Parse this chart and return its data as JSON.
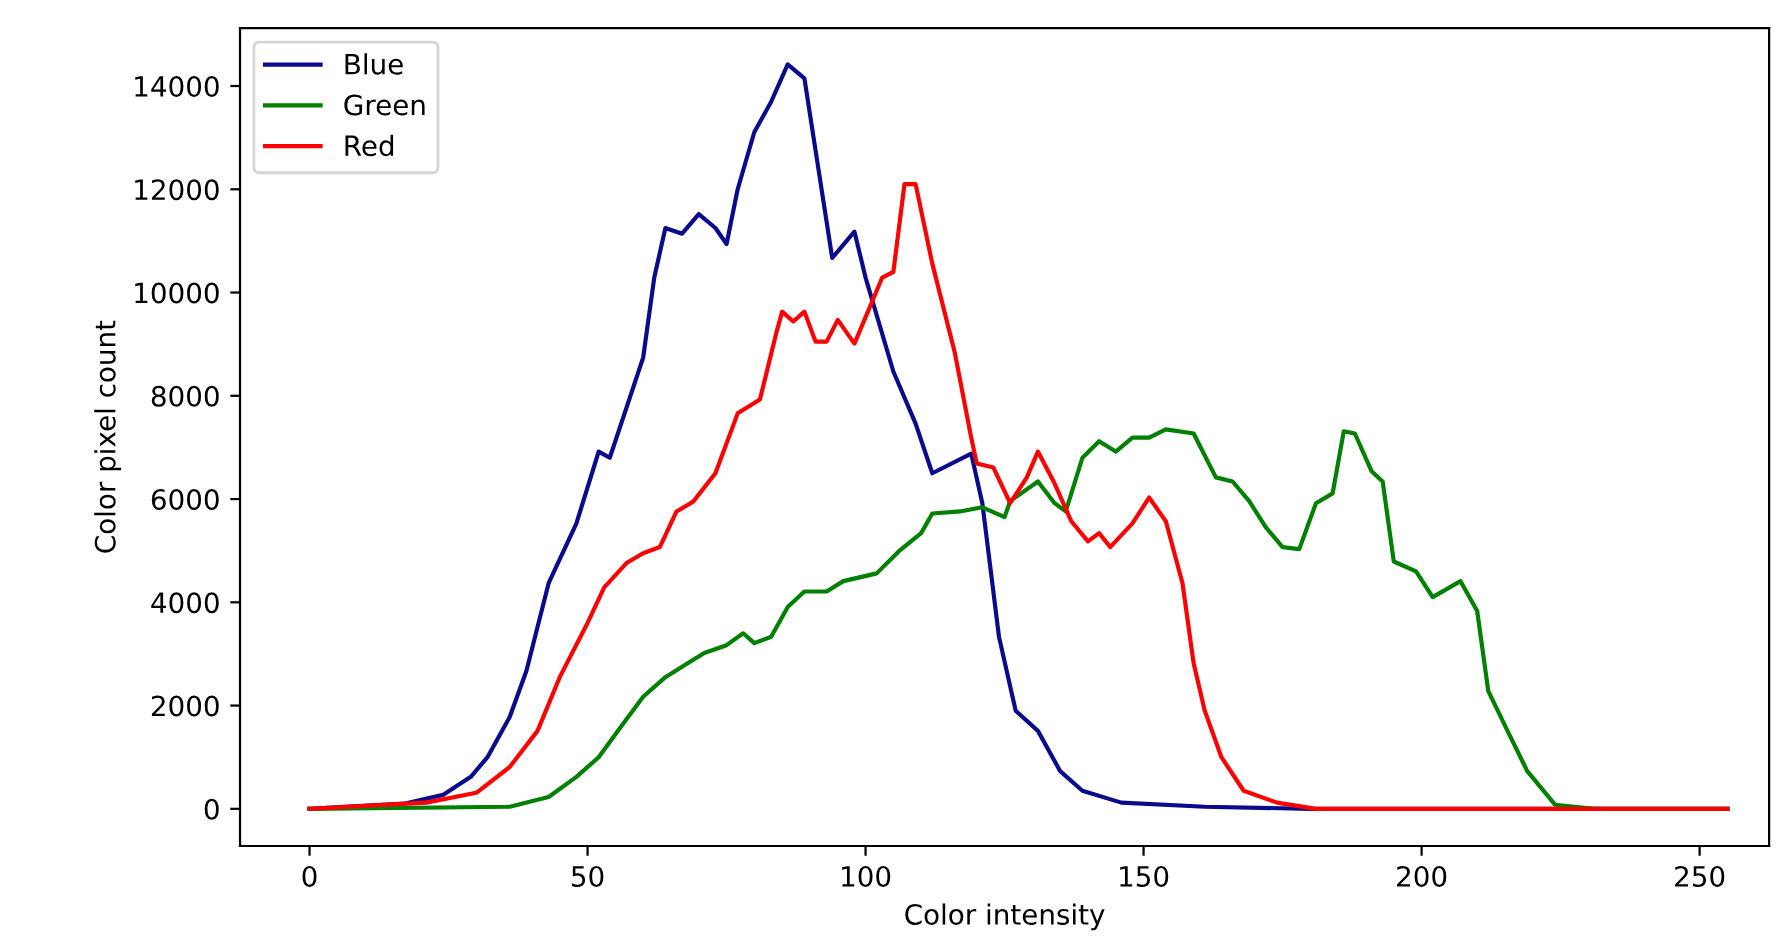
{
  "chart_data": {
    "type": "line",
    "xlabel": "Color intensity",
    "ylabel": "Color pixel count",
    "xlim": [
      -12.5,
      262.5
    ],
    "ylim": [
      -720,
      15120
    ],
    "xticks": [
      0,
      50,
      100,
      150,
      200,
      250
    ],
    "yticks": [
      0,
      2000,
      4000,
      6000,
      8000,
      10000,
      12000,
      14000
    ],
    "legend": "top left",
    "grid": false,
    "series": [
      {
        "name": "Blue",
        "color": "#0a0a8c",
        "x": [
          0,
          17,
          24,
          29,
          32,
          36,
          39,
          43,
          48,
          52,
          54,
          60,
          62,
          64,
          67,
          70,
          73,
          75,
          77,
          80,
          83,
          86,
          89,
          94,
          98,
          100,
          105,
          109,
          112,
          119,
          121,
          124,
          127,
          131,
          135,
          139,
          146,
          161,
          180,
          255
        ],
        "values": [
          0,
          100,
          270,
          620,
          1000,
          1780,
          2670,
          4370,
          5530,
          6920,
          6800,
          8740,
          10290,
          11250,
          11140,
          11520,
          11250,
          10940,
          12000,
          13110,
          13690,
          14420,
          14150,
          10670,
          11180,
          10290,
          8470,
          7460,
          6500,
          6880,
          5920,
          3330,
          1900,
          1510,
          730,
          350,
          120,
          40,
          0,
          0
        ]
      },
      {
        "name": "Green",
        "color": "#008000",
        "x": [
          0,
          36,
          43,
          48,
          52,
          56,
          60,
          64,
          68,
          71,
          75,
          78,
          80,
          83,
          86,
          89,
          93,
          96,
          102,
          106,
          110,
          112,
          117,
          121,
          125,
          126,
          131,
          134,
          136,
          139,
          142,
          145,
          148,
          151,
          154,
          159,
          163,
          166,
          169,
          172,
          175,
          178,
          181,
          184,
          186,
          188,
          191,
          193,
          195,
          199,
          202,
          207,
          210,
          212,
          216,
          219,
          224,
          231,
          255
        ],
        "values": [
          0,
          40,
          230,
          620,
          1000,
          1590,
          2170,
          2550,
          2820,
          3020,
          3170,
          3400,
          3210,
          3330,
          3910,
          4210,
          4210,
          4410,
          4560,
          4990,
          5340,
          5720,
          5760,
          5840,
          5650,
          5960,
          6340,
          5920,
          5760,
          6800,
          7120,
          6920,
          7190,
          7190,
          7350,
          7270,
          6420,
          6340,
          5960,
          5450,
          5070,
          5030,
          5920,
          6110,
          7310,
          7270,
          6540,
          6340,
          4790,
          4600,
          4100,
          4410,
          3830,
          2280,
          1390,
          730,
          80,
          0,
          0
        ]
      },
      {
        "name": "Red",
        "color": "#ff0000",
        "x": [
          0,
          21,
          30,
          36,
          41,
          45,
          50,
          53,
          57,
          60,
          63,
          66,
          69,
          73,
          77,
          81,
          84,
          85,
          87,
          89,
          91,
          93,
          95,
          98,
          103,
          105,
          107,
          109,
          112,
          116,
          119,
          120,
          123,
          126,
          129,
          131,
          134,
          137,
          140,
          142,
          144,
          148,
          151,
          154,
          157,
          159,
          161,
          164,
          168,
          174,
          181,
          255
        ],
        "values": [
          0,
          120,
          310,
          810,
          1510,
          2550,
          3600,
          4290,
          4760,
          4950,
          5070,
          5760,
          5950,
          6500,
          7660,
          7930,
          9240,
          9630,
          9440,
          9630,
          9050,
          9050,
          9470,
          9010,
          10290,
          10400,
          12100,
          12100,
          10560,
          8860,
          7190,
          6690,
          6610,
          5920,
          6420,
          6920,
          6300,
          5570,
          5180,
          5340,
          5070,
          5530,
          6030,
          5570,
          4370,
          2820,
          1900,
          1000,
          350,
          120,
          0,
          0
        ]
      }
    ]
  }
}
